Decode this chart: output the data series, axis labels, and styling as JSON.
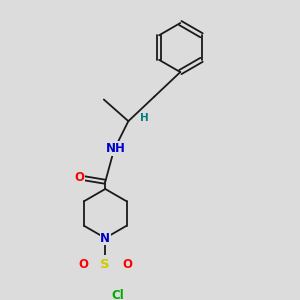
{
  "bg_color": "#dcdcdc",
  "bond_color": "#1a1a1a",
  "atom_colors": {
    "O": "#ff0000",
    "N": "#0000cc",
    "S": "#cccc00",
    "Cl": "#00aa00",
    "H": "#008080"
  },
  "font_size_atoms": 8.5,
  "lw": 1.3
}
